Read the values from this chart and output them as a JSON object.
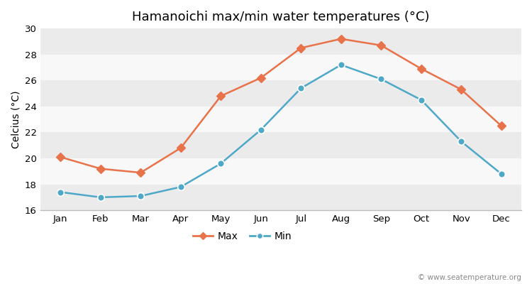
{
  "title": "Hamanoichi max/min water temperatures (°C)",
  "ylabel": "Celcius (°C)",
  "months": [
    "Jan",
    "Feb",
    "Mar",
    "Apr",
    "May",
    "Jun",
    "Jul",
    "Aug",
    "Sep",
    "Oct",
    "Nov",
    "Dec"
  ],
  "max_values": [
    20.1,
    19.2,
    18.9,
    20.8,
    24.8,
    26.2,
    28.5,
    29.2,
    28.7,
    26.9,
    25.3,
    22.5
  ],
  "min_values": [
    17.4,
    17.0,
    17.1,
    17.8,
    19.6,
    22.2,
    25.4,
    27.2,
    26.1,
    24.5,
    21.3,
    18.8
  ],
  "max_color": "#e8724a",
  "min_color": "#4ea8c8",
  "bg_color": "#ffffff",
  "band_light": "#ebebeb",
  "band_white": "#f8f8f8",
  "ylim": [
    16,
    30
  ],
  "yticks": [
    16,
    18,
    20,
    22,
    24,
    26,
    28,
    30
  ],
  "watermark": "© www.seatemperature.org",
  "legend_max": "Max",
  "legend_min": "Min",
  "title_fontsize": 13,
  "axis_fontsize": 10,
  "tick_fontsize": 9.5
}
